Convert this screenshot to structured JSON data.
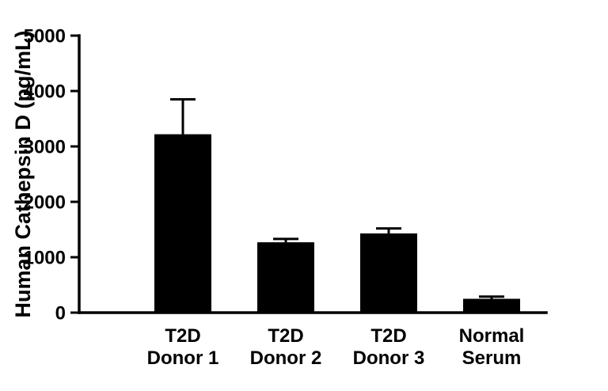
{
  "chart_data": {
    "type": "bar",
    "categories": [
      "T2D\nDonor 1",
      "T2D\nDonor 2",
      "T2D\nDonor 3",
      "Normal\nSerum"
    ],
    "values": [
      3220,
      1270,
      1430,
      250
    ],
    "errors": [
      630,
      60,
      90,
      40
    ],
    "title": "",
    "xlabel": "",
    "ylabel": "Human Cathepsin D (pg/mL)",
    "ylim": [
      0,
      5000
    ],
    "yticks": [
      0,
      1000,
      2000,
      3000,
      4000,
      5000
    ],
    "bar_color": "#000000",
    "axis_color": "#000000",
    "background": "#ffffff",
    "grid": false,
    "legend": false
  }
}
